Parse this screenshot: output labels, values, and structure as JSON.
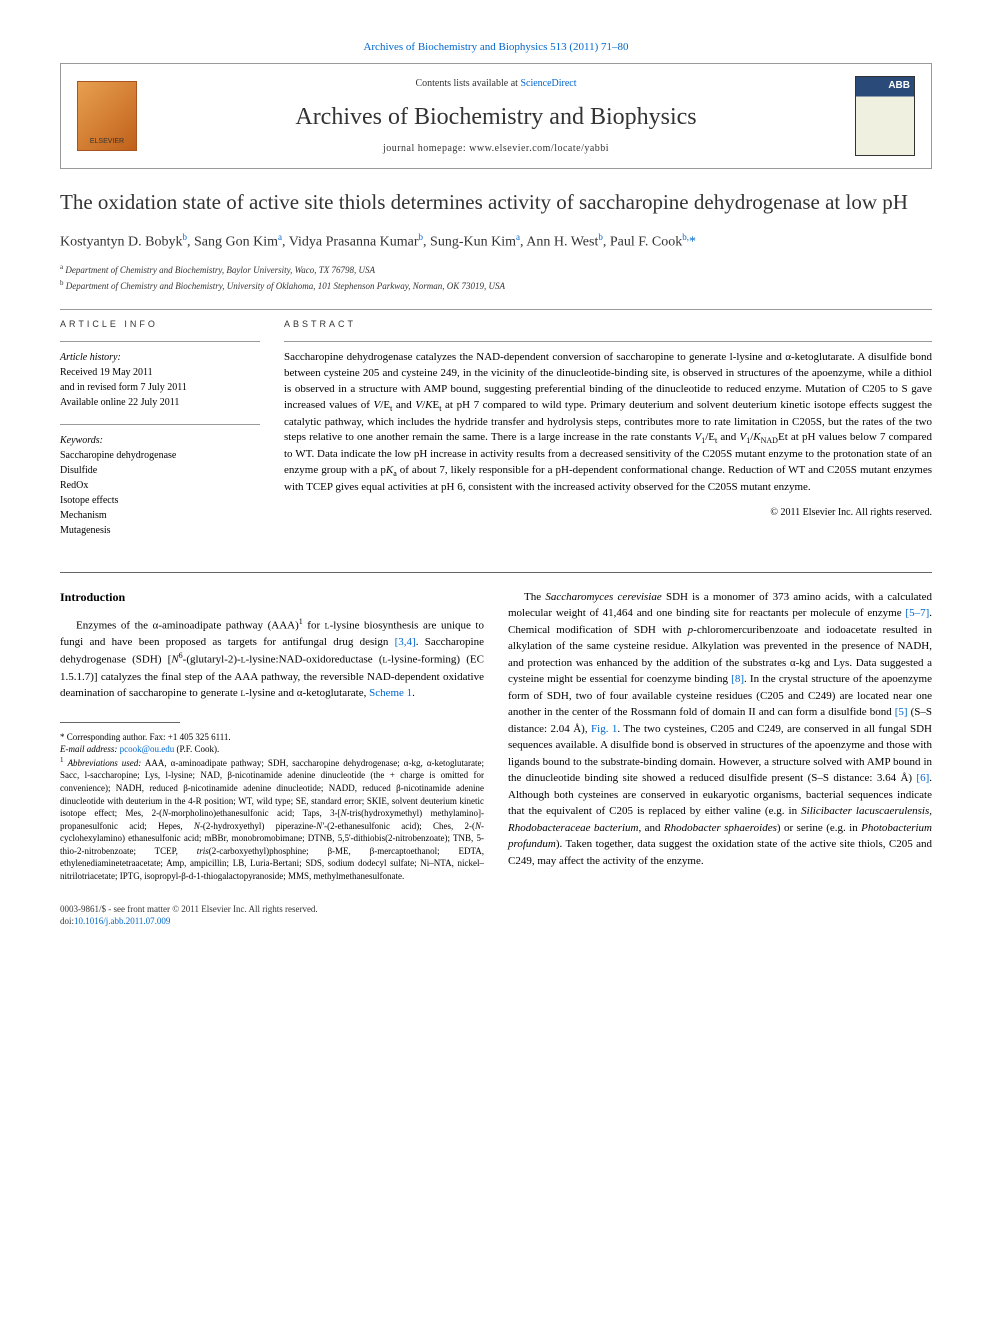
{
  "citation": "Archives of Biochemistry and Biophysics 513 (2011) 71–80",
  "header": {
    "contents_prefix": "Contents lists available at ",
    "sciencedirect": "ScienceDirect",
    "journal_name": "Archives of Biochemistry and Biophysics",
    "homepage_prefix": "journal homepage: ",
    "homepage_url": "www.elsevier.com/locate/yabbi",
    "elsevier_label": "ELSEVIER"
  },
  "article": {
    "title": "The oxidation state of active site thiols determines activity of saccharopine dehydrogenase at low pH",
    "authors_html": "Kostyantyn D. Bobyk<sup>b</sup>, Sang Gon Kim<sup>a</sup>, Vidya Prasanna Kumar<sup>b</sup>, Sung-Kun Kim<sup>a</sup>, Ann H. West<sup>b</sup>, Paul F. Cook<sup>b,</sup><span class='asterisk'>*</span>",
    "affiliations": [
      {
        "sup": "a",
        "text": "Department of Chemistry and Biochemistry, Baylor University, Waco, TX 76798, USA"
      },
      {
        "sup": "b",
        "text": "Department of Chemistry and Biochemistry, University of Oklahoma, 101 Stephenson Parkway, Norman, OK 73019, USA"
      }
    ]
  },
  "info": {
    "header": "ARTICLE INFO",
    "history_label": "Article history:",
    "history": [
      "Received 19 May 2011",
      "and in revised form 7 July 2011",
      "Available online 22 July 2011"
    ],
    "keywords_label": "Keywords:",
    "keywords": [
      "Saccharopine dehydrogenase",
      "Disulfide",
      "RedOx",
      "Isotope effects",
      "Mechanism",
      "Mutagenesis"
    ]
  },
  "abstract": {
    "header": "ABSTRACT",
    "text_html": "Saccharopine dehydrogenase catalyzes the NAD-dependent conversion of saccharopine to generate <span class='smallcap'>l</span>-lysine and α-ketoglutarate. A disulfide bond between cysteine 205 and cysteine 249, in the vicinity of the dinucleotide-binding site, is observed in structures of the apoenzyme, while a dithiol is observed in a structure with AMP bound, suggesting preferential binding of the dinucleotide to reduced enzyme. Mutation of C205 to S gave increased values of <i>V</i>/E<sub>t</sub> and <i>V</i>/<i>K</i>E<sub>t</sub> at pH 7 compared to wild type. Primary deuterium and solvent deuterium kinetic isotope effects suggest the catalytic pathway, which includes the hydride transfer and hydrolysis steps, contributes more to rate limitation in C205S, but the rates of the two steps relative to one another remain the same. There is a large increase in the rate constants <i>V</i><sub>1</sub>/E<sub>t</sub> and <i>V</i><sub>1</sub>/<i>K</i><sub>NAD</sub>Et at pH values below 7 compared to WT. Data indicate the low pH increase in activity results from a decreased sensitivity of the C205S mutant enzyme to the protonation state of an enzyme group with a p<i>K</i><sub>a</sub> of about 7, likely responsible for a pH-dependent conformational change. Reduction of WT and C205S mutant enzymes with TCEP gives equal activities at pH 6, consistent with the increased activity observed for the C205S mutant enzyme.",
    "copyright": "© 2011 Elsevier Inc. All rights reserved."
  },
  "introduction": {
    "header": "Introduction",
    "para1_html": "Enzymes of the α-aminoadipate pathway (AAA)<sup>1</sup> for <span class='smallcap'>l</span>-lysine biosynthesis are unique to fungi and have been proposed as targets for antifungal drug design <span class='link'>[3,4]</span>. Saccharopine dehydrogenase (SDH) [<i>N</i><sup>6</sup>-(glutaryl-2)-<span class='smallcap'>l</span>-lysine:NAD-oxidoreductase (<span class='smallcap'>l</span>-lysine-forming) (EC 1.5.1.7)] catalyzes the final step of the AAA pathway, the reversible NAD-dependent oxidative deamination of saccharopine to generate <span class='smallcap'>l</span>-lysine and α-ketoglutarate, <span class='link'>Scheme 1</span>.",
    "para2_html": "The <i>Saccharomyces cerevisiae</i> SDH is a monomer of 373 amino acids, with a calculated molecular weight of 41,464 and one binding site for reactants per molecule of enzyme <span class='link'>[5–7]</span>. Chemical modification of SDH with <i>p</i>-chloromercuribenzoate and iodoacetate resulted in alkylation of the same cysteine residue. Alkylation was prevented in the presence of NADH, and protection was enhanced by the addition of the substrates α-kg and Lys. Data suggested a cysteine might be essential for coenzyme binding <span class='link'>[8]</span>. In the crystal structure of the apoenzyme form of SDH, two of four available cysteine residues (C205 and C249) are located near one another in the center of the Rossmann fold of domain II and can form a disulfide bond <span class='link'>[5]</span> (S–S distance: 2.04 Å), <span class='link'>Fig. 1</span>. The two cysteines, C205 and C249, are conserved in all fungal SDH sequences available. A disulfide bond is observed in structures of the apoenzyme and those with ligands bound to the substrate-binding domain. However, a structure solved with AMP bound in the dinucleotide binding site showed a reduced disulfide present (S–S distance: 3.64 Å) <span class='link'>[6]</span>. Although both cysteines are conserved in eukaryotic organisms, bacterial sequences indicate that the equivalent of C205 is replaced by either valine (e.g. in <i>Silicibacter lacuscaerulensis, Rhodobacteraceae bacterium</i>, and <i>Rhodobacter sphaeroides</i>) or serine (e.g. in <i>Photobacterium profundum</i>). Taken together, data suggest the oxidation state of the active site thiols, C205 and C249, may affect the activity of the enzyme."
  },
  "footnotes": {
    "corresponding_html": "* Corresponding author. Fax: +1 405 325 6111.",
    "email_label": "E-mail address: ",
    "email": "pcook@ou.edu",
    "email_suffix": " (P.F. Cook).",
    "abbrev_html": "<sup>1</sup> <i>Abbreviations used:</i> AAA, α-aminoadipate pathway; SDH, saccharopine dehydrogenase; α-kg, α-ketoglutarate; Sacc, <span class='smallcap'>l</span>-saccharopine; Lys, <span class='smallcap'>l</span>-lysine; NAD, β-nicotinamide adenine dinucleotide (the + charge is omitted for convenience); NADH, reduced β-nicotinamide adenine dinucleotide; NADD, reduced β-nicotinamide adenine dinucleotide with deuterium in the 4-R position; WT, wild type; SE, standard error; SKIE, solvent deuterium kinetic isotope effect; Mes, 2-(<i>N</i>-morpholino)ethanesulfonic acid; Taps, 3-[<i>N</i>-tris(hydroxymethyl) methylamino]-propanesulfonic acid; Hepes, <i>N</i>-(2-hydroxyethyl) piperazine-<i>N'</i>-(2-ethanesulfonic acid); Ches, 2-(<i>N</i>-cyclohexylamino) ethanesulfonic acid; mBBr, monobromobimane; DTNB, 5,5'-dithiobis(2-nitrobenzoate); TNB, 5-thio-2-nitrobenzoate; TCEP, <i>tris</i>(2-carboxyethyl)phosphine; β-ME, β-mercaptoethanol; EDTA, ethylenediaminetetraacetate; Amp, ampicillin; LB, Luria-Bertani; SDS, sodium dodecyl sulfate; Ni–NTA, nickel–nitrilotriacetate; IPTG, isopropyl-β-<span class='smallcap'>d</span>-1-thiogalactopyranoside; MMS, methylmethanesulfonate."
  },
  "footer": {
    "line1": "0003-9861/$ - see front matter © 2011 Elsevier Inc. All rights reserved.",
    "doi_prefix": "doi:",
    "doi": "10.1016/j.abb.2011.07.009"
  },
  "colors": {
    "link": "#0066cc",
    "text": "#000000",
    "border": "#999999",
    "elsevier_orange": "#e8a050",
    "journal_blue": "#2a4a7a"
  }
}
